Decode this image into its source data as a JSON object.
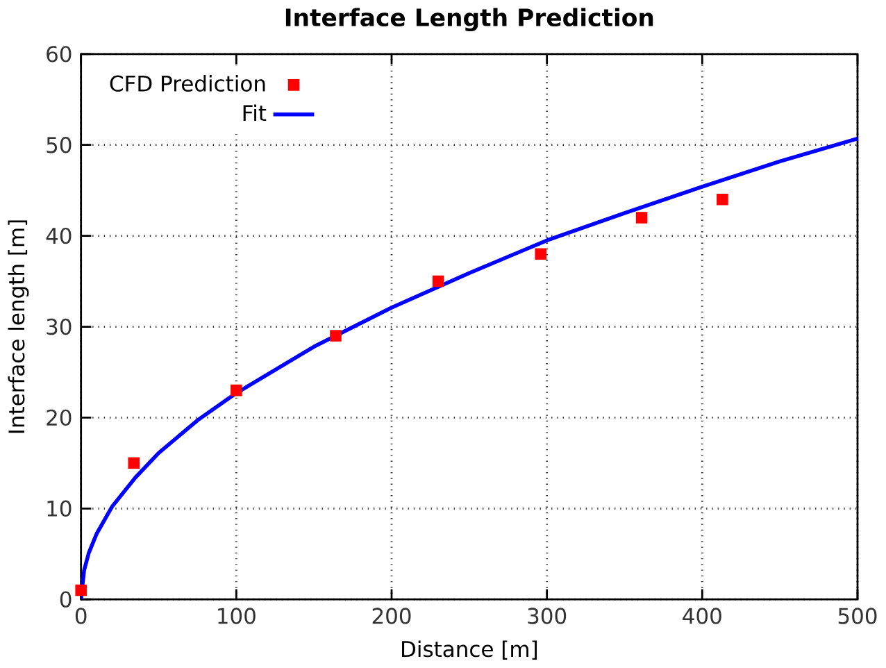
{
  "chart_data": {
    "type": "scatter",
    "title": "Interface Length Prediction",
    "xlabel": "Distance [m]",
    "ylabel": "Interface length [m]",
    "xlim": [
      0,
      500
    ],
    "ylim": [
      0,
      60
    ],
    "xticks": [
      0,
      100,
      200,
      300,
      400,
      500
    ],
    "yticks": [
      0,
      10,
      20,
      30,
      40,
      50,
      60
    ],
    "grid": true,
    "legend": "top left",
    "series": [
      {
        "name": "CFD Prediction",
        "marker": "square",
        "color": "#ff0000",
        "x": [
          0,
          34,
          100,
          164,
          230,
          296,
          361,
          413
        ],
        "values": [
          1,
          15,
          23,
          29,
          35,
          38,
          42,
          44
        ]
      },
      {
        "name": "Fit",
        "type": "line",
        "marker": "none",
        "line_style": "solid",
        "color": "#0000ff",
        "x": [
          0,
          2,
          5,
          10,
          20,
          35,
          50,
          75,
          100,
          150,
          200,
          250,
          300,
          350,
          400,
          450,
          500
        ],
        "values": [
          0,
          3.2,
          5.1,
          7.2,
          10.2,
          13.4,
          16.1,
          19.7,
          22.7,
          27.8,
          32.1,
          35.9,
          39.5,
          42.5,
          45.4,
          48.2,
          50.7
        ]
      }
    ]
  }
}
